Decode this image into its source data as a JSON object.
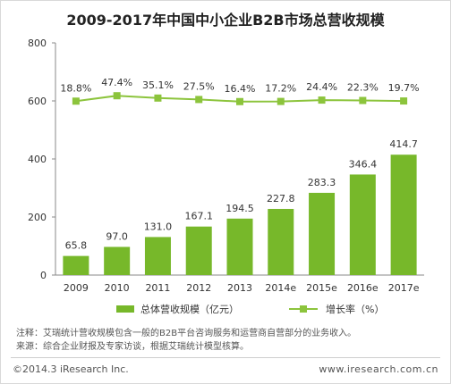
{
  "title": "2009-2017年中国中小企业B2B市场总营收规模",
  "chart_data": {
    "type": "bar+line",
    "categories": [
      "2009",
      "2010",
      "2011",
      "2012",
      "2013",
      "2014e",
      "2015e",
      "2016e",
      "2017e"
    ],
    "series": [
      {
        "name": "总体营收规模（亿元）",
        "type": "bar",
        "values": [
          65.8,
          97.0,
          131.0,
          167.1,
          194.5,
          227.8,
          283.3,
          346.4,
          414.7
        ],
        "labels": [
          "65.8",
          "97.0",
          "131.0",
          "167.1",
          "194.5",
          "227.8",
          "283.3",
          "346.4",
          "414.7"
        ],
        "color": "#77b82a"
      },
      {
        "name": "增长率（%）",
        "type": "line",
        "values": [
          18.8,
          47.4,
          35.1,
          27.5,
          16.4,
          17.2,
          24.4,
          22.3,
          19.7
        ],
        "labels": [
          "18.8%",
          "47.4%",
          "35.1%",
          "27.5%",
          "16.4%",
          "17.2%",
          "24.4%",
          "22.3%",
          "19.7%"
        ],
        "color": "#8cc43c"
      }
    ],
    "y_ticks": [
      "0",
      "200",
      "400",
      "600",
      "800"
    ],
    "ylim": [
      0,
      800
    ],
    "grid": false,
    "legend_position": "bottom"
  },
  "notes": {
    "line1": "注释：艾瑞统计营收规模包含一般的B2B平台咨询服务和运营商自营部分的业务收入。",
    "line2": "来源：综合企业财报及专家访谈，根据艾瑞统计模型核算。"
  },
  "footer": {
    "copyright": "©2014.3 iResearch Inc.",
    "website": "www.iresearch.com.cn"
  }
}
